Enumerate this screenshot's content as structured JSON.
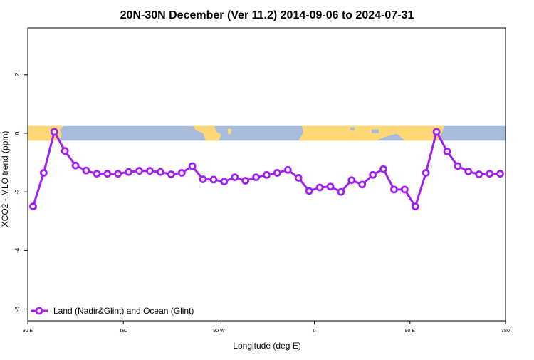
{
  "chart_data": {
    "type": "line",
    "title": "20N-30N December (Ver 11.2)   2014-09-06 to 2024-07-31",
    "xlabel": "Longitude (deg E)",
    "ylabel": "XCO2 - MLO trend (ppm)",
    "x_ticks": [
      {
        "value": 90,
        "label": "90 E"
      },
      {
        "value": 180,
        "label": "180"
      },
      {
        "value": 270,
        "label": "90 W"
      },
      {
        "value": 360,
        "label": "0"
      },
      {
        "value": 450,
        "label": "90 E"
      },
      {
        "value": 540,
        "label": "180"
      }
    ],
    "y_ticks": [
      {
        "value": -6,
        "label": "-6"
      },
      {
        "value": -4,
        "label": "-4"
      },
      {
        "value": -2,
        "label": "-2"
      },
      {
        "value": 0,
        "label": "0"
      },
      {
        "value": 2,
        "label": "2"
      }
    ],
    "xlim": [
      90,
      540
    ],
    "ylim": [
      -6.4,
      3.6
    ],
    "grid": false,
    "map_band": {
      "y_range": [
        -0.25,
        0.25
      ],
      "land_color": "#FDD874",
      "ocean_color": "#A7BCDC"
    },
    "legend_position": "bottom-left",
    "series": [
      {
        "name": "Land (Nadir&Glint) and Ocean (Glint)",
        "color": "#A020F0",
        "x": [
          95,
          105,
          115,
          125,
          135,
          145,
          155,
          165,
          175,
          185,
          195,
          205,
          215,
          225,
          235,
          245,
          255,
          265,
          275,
          285,
          295,
          305,
          315,
          325,
          335,
          345,
          355,
          365,
          375,
          385,
          395,
          405,
          415,
          425,
          435,
          445,
          455,
          465,
          475,
          485,
          495,
          505,
          515,
          525,
          535
        ],
        "values": [
          -2.5,
          -1.35,
          0.05,
          -0.6,
          -1.1,
          -1.27,
          -1.38,
          -1.38,
          -1.38,
          -1.32,
          -1.28,
          -1.28,
          -1.32,
          -1.4,
          -1.35,
          -1.12,
          -1.57,
          -1.58,
          -1.65,
          -1.5,
          -1.62,
          -1.5,
          -1.42,
          -1.35,
          -1.25,
          -1.52,
          -1.97,
          -1.85,
          -1.82,
          -2.0,
          -1.6,
          -1.75,
          -1.42,
          -1.22,
          -1.92,
          -1.92,
          -2.5,
          -1.35,
          0.05,
          -0.62,
          -1.12,
          -1.3,
          -1.4,
          -1.38,
          -1.38
        ]
      }
    ]
  }
}
